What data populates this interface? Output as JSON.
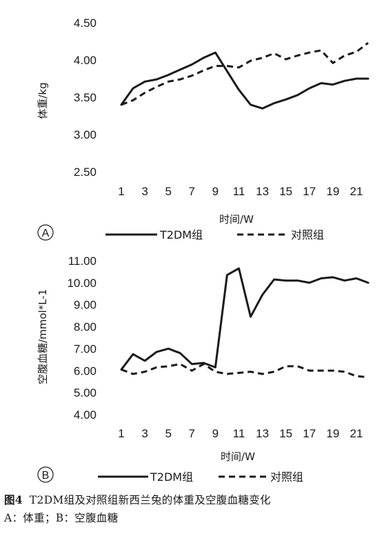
{
  "chart_data": [
    {
      "panel": "A",
      "type": "line",
      "xlabel": "时间/W",
      "ylabel": "体重/kg",
      "x": [
        1,
        2,
        3,
        4,
        5,
        6,
        7,
        8,
        9,
        10,
        11,
        12,
        13,
        14,
        15,
        16,
        17,
        18,
        19,
        20,
        21,
        22
      ],
      "xticks": [
        "1",
        "3",
        "5",
        "7",
        "9",
        "11",
        "13",
        "15",
        "17",
        "19",
        "21"
      ],
      "xlim": [
        1,
        22
      ],
      "ylim": [
        2.5,
        4.5
      ],
      "yticks": [
        "2.50",
        "3.00",
        "3.50",
        "4.00",
        "4.50"
      ],
      "grid": false,
      "legend_position": "bottom",
      "series": [
        {
          "name": "T2DM组",
          "style": "solid",
          "values": [
            3.4,
            3.62,
            3.71,
            3.74,
            3.8,
            3.87,
            3.94,
            4.03,
            4.1,
            3.85,
            3.6,
            3.4,
            3.35,
            3.42,
            3.47,
            3.53,
            3.62,
            3.69,
            3.67,
            3.72,
            3.75,
            3.75
          ]
        },
        {
          "name": "对照组",
          "style": "dashed",
          "values": [
            3.4,
            3.46,
            3.56,
            3.64,
            3.71,
            3.74,
            3.79,
            3.86,
            3.92,
            3.92,
            3.9,
            3.99,
            4.03,
            4.09,
            4.01,
            4.06,
            4.1,
            4.13,
            3.96,
            4.06,
            4.11,
            4.23
          ]
        }
      ]
    },
    {
      "panel": "B",
      "type": "line",
      "xlabel": "时间/W",
      "ylabel": "空腹血糖/mmol*L-1",
      "x": [
        1,
        2,
        3,
        4,
        5,
        6,
        7,
        8,
        9,
        10,
        11,
        12,
        13,
        14,
        15,
        16,
        17,
        18,
        19,
        20,
        21,
        22
      ],
      "xticks": [
        "1",
        "3",
        "5",
        "7",
        "9",
        "11",
        "13",
        "15",
        "17",
        "19",
        "21"
      ],
      "xlim": [
        1,
        22
      ],
      "ylim": [
        4,
        11
      ],
      "yticks": [
        "4.00",
        "5.00",
        "6.00",
        "7.00",
        "8.00",
        "9.00",
        "10.00",
        "11.00"
      ],
      "grid": false,
      "legend_position": "bottom",
      "series": [
        {
          "name": "T2DM组",
          "style": "solid",
          "values": [
            6.05,
            6.75,
            6.45,
            6.85,
            7.0,
            6.8,
            6.3,
            6.35,
            6.15,
            10.35,
            10.65,
            8.45,
            9.45,
            10.15,
            10.1,
            10.1,
            10.0,
            10.2,
            10.25,
            10.1,
            10.2,
            10.0
          ]
        },
        {
          "name": "对照组",
          "style": "dashed",
          "values": [
            6.05,
            5.85,
            5.95,
            6.15,
            6.2,
            6.3,
            6.0,
            6.3,
            5.95,
            5.85,
            5.9,
            5.95,
            5.85,
            5.95,
            6.2,
            6.2,
            6.0,
            6.0,
            6.0,
            5.95,
            5.75,
            5.7
          ]
        }
      ]
    }
  ],
  "panels": [
    {
      "letter": "A"
    },
    {
      "letter": "B"
    }
  ],
  "caption": {
    "figure_label": "图4",
    "line1": "T2DM组及对照组新西兰兔的体重及空腹血糖变化",
    "line2": "A：体重；B：空腹血糖"
  }
}
